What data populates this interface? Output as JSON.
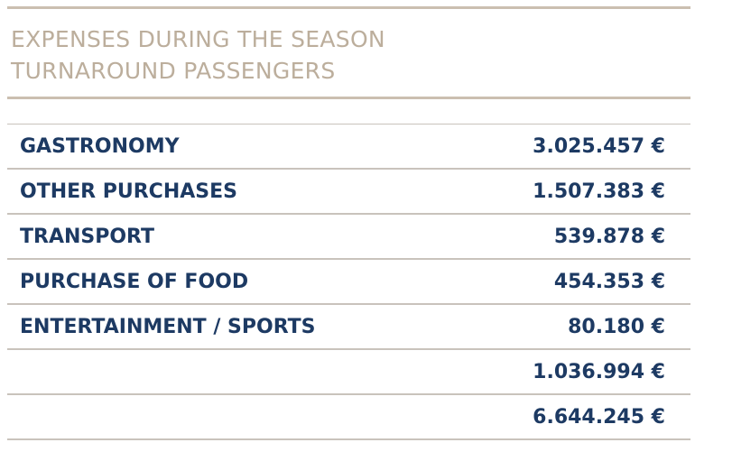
{
  "title": {
    "line1": "EXPENSES DURING THE SEASON",
    "line2": "TURNAROUND PASSENGERS"
  },
  "rows": [
    {
      "label": "GASTRONOMY",
      "value": "3.025.457 €"
    },
    {
      "label": "OTHER PURCHASES",
      "value": "1.507.383 €"
    },
    {
      "label": "TRANSPORT",
      "value": "539.878 €"
    },
    {
      "label": "PURCHASE OF FOOD",
      "value": "454.353 €"
    },
    {
      "label": "ENTERTAINMENT / SPORTS",
      "value": "80.180 €"
    },
    {
      "label": "",
      "value": "1.036.994 €"
    },
    {
      "label": "",
      "value": "6.644.245 €"
    }
  ],
  "colors": {
    "title": "#bcae9c",
    "text": "#1d3a63",
    "rule": "#cbbfb0",
    "row_divider": "#c9c3bc"
  }
}
